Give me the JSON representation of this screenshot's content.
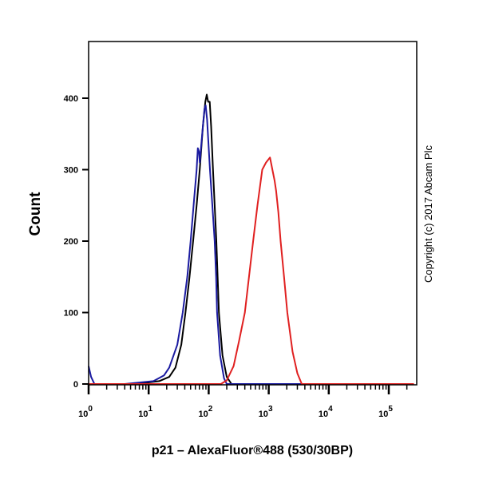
{
  "chart_data": {
    "type": "line",
    "title": "",
    "xlabel": "p21 – AlexaFluor®488 (530/30BP)",
    "ylabel": "Count",
    "x_scale": "log",
    "xlim": [
      1,
      262144
    ],
    "ylim": [
      0,
      480
    ],
    "grid": false,
    "legend": "none",
    "x_ticks": [
      {
        "base": "10",
        "exp": "0",
        "value": 1
      },
      {
        "base": "10",
        "exp": "1",
        "value": 10
      },
      {
        "base": "10",
        "exp": "2",
        "value": 100
      },
      {
        "base": "10",
        "exp": "3",
        "value": 1000
      },
      {
        "base": "10",
        "exp": "4",
        "value": 10000
      },
      {
        "base": "10",
        "exp": "5",
        "value": 100000
      }
    ],
    "y_ticks": [
      "0",
      "100",
      "200",
      "300",
      "400"
    ],
    "series": [
      {
        "color": "#000000",
        "points": [
          [
            1,
            0
          ],
          [
            6,
            0
          ],
          [
            15,
            4
          ],
          [
            22,
            10
          ],
          [
            28,
            23
          ],
          [
            35,
            55
          ],
          [
            41,
            100
          ],
          [
            48,
            150
          ],
          [
            55,
            200
          ],
          [
            63,
            250
          ],
          [
            71,
            300
          ],
          [
            80,
            360
          ],
          [
            88,
            395
          ],
          [
            93,
            405
          ],
          [
            98,
            395
          ],
          [
            104,
            395
          ],
          [
            110,
            360
          ],
          [
            118,
            300
          ],
          [
            126,
            250
          ],
          [
            134,
            200
          ],
          [
            141,
            150
          ],
          [
            148,
            100
          ],
          [
            170,
            40
          ],
          [
            200,
            10
          ],
          [
            240,
            0
          ],
          [
            262144,
            0
          ]
        ]
      },
      {
        "color": "#1a1aa0",
        "points": [
          [
            1,
            25
          ],
          [
            1.1,
            10
          ],
          [
            1.25,
            0
          ],
          [
            4,
            0
          ],
          [
            12,
            4
          ],
          [
            18,
            12
          ],
          [
            22,
            23
          ],
          [
            30,
            55
          ],
          [
            37,
            100
          ],
          [
            44,
            150
          ],
          [
            50,
            200
          ],
          [
            56,
            250
          ],
          [
            63,
            300
          ],
          [
            66,
            330
          ],
          [
            69,
            325
          ],
          [
            71,
            310
          ],
          [
            78,
            350
          ],
          [
            85,
            385
          ],
          [
            89,
            390
          ],
          [
            94,
            370
          ],
          [
            105,
            300
          ],
          [
            115,
            250
          ],
          [
            126,
            200
          ],
          [
            133,
            150
          ],
          [
            138,
            100
          ],
          [
            155,
            40
          ],
          [
            180,
            8
          ],
          [
            200,
            0
          ],
          [
            262144,
            0
          ]
        ]
      },
      {
        "color": "#e02020",
        "points": [
          [
            1,
            0
          ],
          [
            160,
            0
          ],
          [
            200,
            5
          ],
          [
            260,
            25
          ],
          [
            320,
            60
          ],
          [
            400,
            100
          ],
          [
            470,
            150
          ],
          [
            550,
            200
          ],
          [
            650,
            250
          ],
          [
            780,
            300
          ],
          [
            900,
            310
          ],
          [
            1050,
            317
          ],
          [
            1150,
            300
          ],
          [
            1250,
            285
          ],
          [
            1330,
            270
          ],
          [
            1450,
            240
          ],
          [
            1580,
            200
          ],
          [
            1800,
            150
          ],
          [
            2040,
            100
          ],
          [
            2500,
            45
          ],
          [
            3000,
            15
          ],
          [
            3550,
            0
          ],
          [
            262144,
            0
          ]
        ]
      }
    ]
  },
  "copyright": "Copyright (c) 2017 Abcam Plc"
}
